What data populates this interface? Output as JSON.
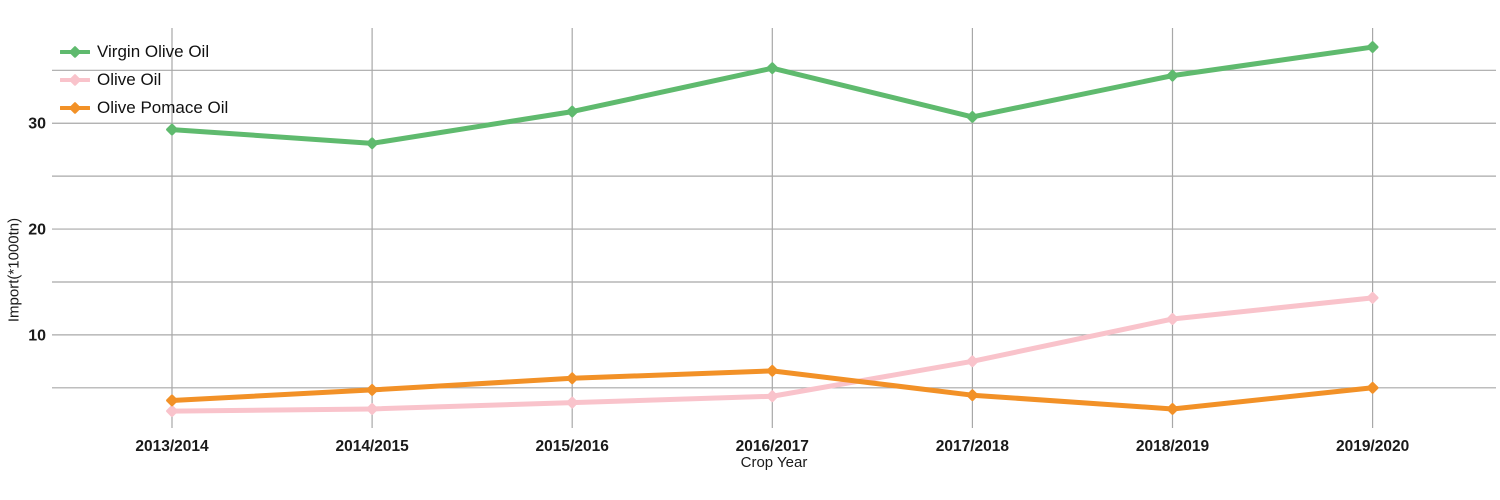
{
  "chart_data": {
    "type": "line",
    "title": "",
    "xlabel": "Crop Year",
    "ylabel": "Import(*1000tn)",
    "categories": [
      "2013/2014",
      "2014/2015",
      "2015/2016",
      "2016/2017",
      "2017/2018",
      "2018/2019",
      "2019/2020"
    ],
    "series": [
      {
        "name": "Virgin Olive Oil",
        "color": "#5fba6e",
        "values": [
          29.4,
          28.1,
          31.1,
          35.2,
          30.6,
          34.5,
          37.2
        ]
      },
      {
        "name": "Olive Oil",
        "color": "#f9c3cb",
        "values": [
          2.8,
          3.0,
          3.6,
          4.2,
          7.5,
          11.5,
          13.5
        ]
      },
      {
        "name": "Olive Pomace Oil",
        "color": "#f29127",
        "values": [
          3.8,
          4.8,
          5.9,
          6.6,
          4.3,
          3.0,
          5.0
        ]
      }
    ],
    "ytick_labels": [
      "10",
      "20",
      "30"
    ],
    "yticks": [
      10,
      20,
      30
    ],
    "ygridlines": [
      5,
      10,
      15,
      20,
      25,
      30,
      35
    ],
    "ylim": [
      1.2,
      39.0
    ],
    "grid": true,
    "legend_position": "top-left",
    "colors": {
      "gridline": "#a8a8a8",
      "tick_text": "#1a1a1a",
      "axis_title_text": "#1a1a1a",
      "background": "#ffffff"
    }
  }
}
